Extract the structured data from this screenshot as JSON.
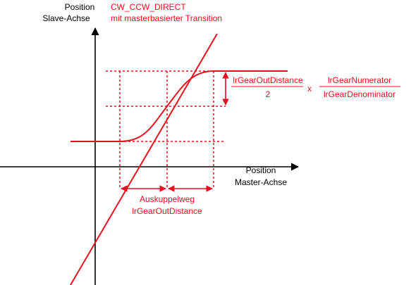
{
  "title": {
    "line1": "CW_CCW_DIRECT",
    "line2": "mit masterbasierter Transition"
  },
  "axes": {
    "y_label_line1": "Position",
    "y_label_line2": "Slave-Achse",
    "x_label_line1": "Position",
    "x_label_line2": "Master-Achse"
  },
  "formula": {
    "numerator_left": "lrGearOutDistance",
    "denominator_left": "2",
    "operator": "x",
    "numerator_right": "lrGearNumerator",
    "denominator_right": "lrGearDenominator"
  },
  "annotation": {
    "line1": "Auskuppelweg",
    "line2": "lrGearOutDistance"
  },
  "colors": {
    "curve": "#e8101e",
    "axes": "#000000",
    "text_red": "#e8101e",
    "text_black": "#000000"
  }
}
